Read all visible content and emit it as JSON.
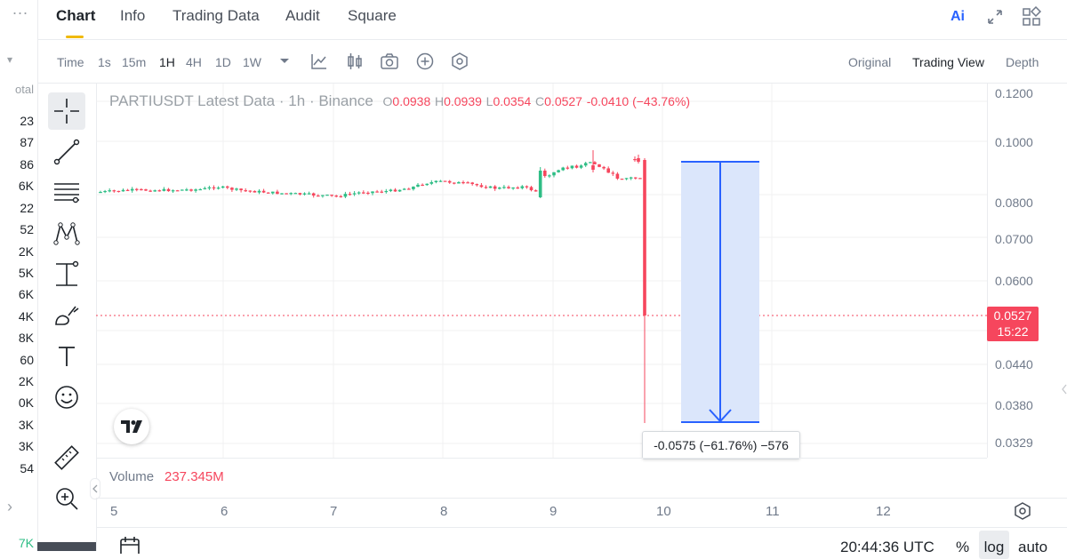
{
  "left_panel": {
    "menu_glyph": "...",
    "caret": "▾",
    "header": "otal",
    "values": [
      "23",
      "87",
      "86",
      "6K",
      "22",
      "52",
      "2K",
      "5K",
      "6K",
      "4K",
      "8K",
      "60",
      "2K",
      "0K",
      "3K",
      "3K",
      "54"
    ],
    "arrow": "›",
    "bottom": "7K"
  },
  "tabs": {
    "chart": "Chart",
    "info": "Info",
    "trading_data": "Trading Data",
    "audit": "Audit",
    "square": "Square"
  },
  "toolbar": {
    "time": "Time",
    "intervals": [
      "1s",
      "15m",
      "1H",
      "4H",
      "1D",
      "1W"
    ],
    "active_interval": "1H",
    "views": [
      "Original",
      "Trading View",
      "Depth"
    ],
    "active_view": "Trading View",
    "ai_label": "Ai"
  },
  "legend": {
    "symbol": "PARTIUSDT Latest Data",
    "interval": "1h",
    "exchange": "Binance",
    "o_label": "O",
    "o": "0.0938",
    "h_label": "H",
    "h": "0.0939",
    "l_label": "L",
    "l": "0.0354",
    "c_label": "C",
    "c": "0.0527",
    "change": "-0.0410 (−43.76%)",
    "sep": "·"
  },
  "price_axis": {
    "ticks": [
      "0.1200",
      "0.1000",
      "0.0800",
      "0.0700",
      "0.0600",
      "0.0440",
      "0.0380",
      "0.0329"
    ],
    "current_price": "0.0527",
    "countdown": "15:22"
  },
  "measure": {
    "label": "-0.0575 (−61.76%) −576"
  },
  "volume": {
    "label": "Volume",
    "value": "237.345M"
  },
  "time_axis": {
    "ticks": [
      "5",
      "6",
      "7",
      "8",
      "9",
      "10",
      "11",
      "12"
    ]
  },
  "bottom_bar": {
    "utc": "20:44:36 UTC",
    "percent": "%",
    "log": "log",
    "auto": "auto"
  },
  "colors": {
    "up": "#2ebd85",
    "down": "#f6465d",
    "measure_fill": "#dbe6fb",
    "measure_line": "#2962ff",
    "accent": "#f0b90b"
  },
  "icons": {
    "crosshair": "crosshair-icon",
    "trendline": "trendline-icon",
    "fib": "fib-retracement-icon",
    "pattern": "pattern-icon",
    "measure": "measure-tool-icon",
    "brush": "brush-icon",
    "text": "text-icon",
    "emoji": "emoji-icon",
    "ruler": "ruler-icon",
    "zoom": "zoom-in-icon"
  }
}
